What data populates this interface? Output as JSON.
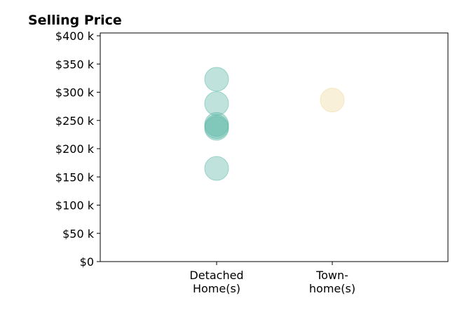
{
  "chart_data": {
    "type": "scatter",
    "title": "Selling Price",
    "xlabel": "",
    "ylabel": "",
    "categories": [
      {
        "lines": [
          "Detached",
          "Home(s)"
        ]
      },
      {
        "lines": [
          "Town-",
          "home(s)"
        ]
      }
    ],
    "ylim": [
      0,
      405000
    ],
    "yticks": [
      {
        "value": 0,
        "label": "$0"
      },
      {
        "value": 50000,
        "label": "$50 k"
      },
      {
        "value": 100000,
        "label": "$100 k"
      },
      {
        "value": 150000,
        "label": "$150 k"
      },
      {
        "value": 200000,
        "label": "$200 k"
      },
      {
        "value": 250000,
        "label": "$250 k"
      },
      {
        "value": 300000,
        "label": "$300 k"
      },
      {
        "value": 350000,
        "label": "$350 k"
      },
      {
        "value": 400000,
        "label": "$400 k"
      }
    ],
    "series": [
      {
        "category_index": 0,
        "values": [
          323000,
          280000,
          243000,
          239000,
          236000,
          165000
        ],
        "color": "#5fb8a8"
      },
      {
        "category_index": 1,
        "values": [
          286000
        ],
        "color": "#f0d9a0"
      }
    ],
    "grid": false,
    "legend": "none"
  }
}
